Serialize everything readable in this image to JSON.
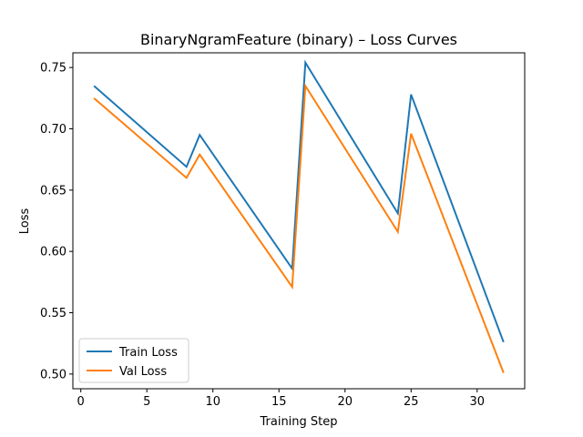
{
  "chart_data": {
    "type": "line",
    "title": "BinaryNgramFeature (binary) – Loss Curves",
    "xlabel": "Training Step",
    "ylabel": "Loss",
    "xlim": [
      -0.6,
      33.6
    ],
    "ylim": [
      0.488,
      0.762
    ],
    "xticks": [
      0,
      5,
      10,
      15,
      20,
      25,
      30
    ],
    "yticks": [
      0.5,
      0.55,
      0.6,
      0.65,
      0.7,
      0.75
    ],
    "ytick_labels": [
      "0.50",
      "0.55",
      "0.60",
      "0.65",
      "0.70",
      "0.75"
    ],
    "grid": false,
    "legend_position": "lower-left",
    "series": [
      {
        "name": "Train Loss",
        "color": "#1f77b4",
        "x": [
          1,
          8,
          9,
          16,
          17,
          24,
          25,
          32
        ],
        "y": [
          0.735,
          0.669,
          0.695,
          0.586,
          0.754,
          0.631,
          0.728,
          0.526
        ]
      },
      {
        "name": "Val Loss",
        "color": "#ff7f0e",
        "x": [
          1,
          8,
          9,
          16,
          17,
          24,
          25,
          32
        ],
        "y": [
          0.725,
          0.66,
          0.679,
          0.571,
          0.735,
          0.616,
          0.696,
          0.501
        ]
      }
    ]
  }
}
